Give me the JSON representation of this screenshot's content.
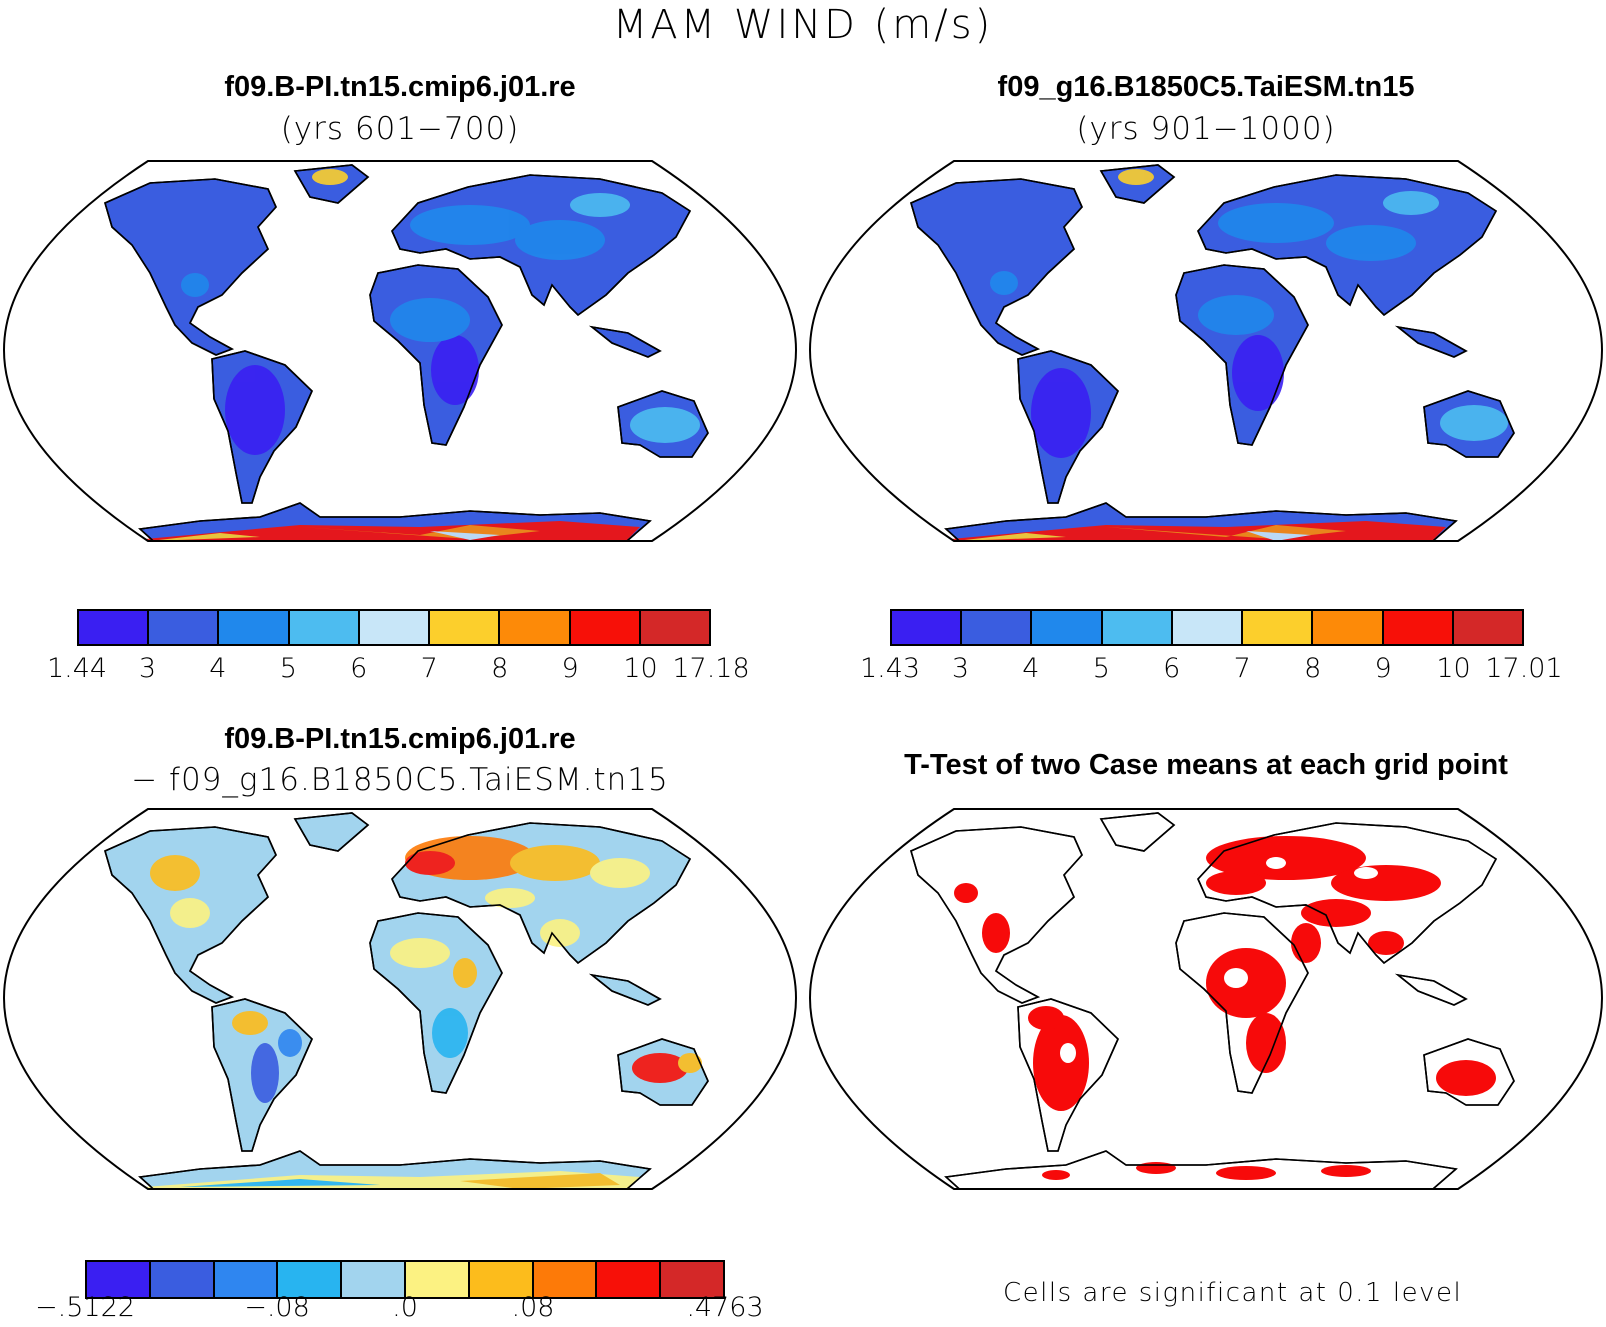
{
  "main_title": "MAM WIND (m/s)",
  "panels": {
    "top_left": {
      "title": "f09.B-PI.tn15.cmip6.j01.re",
      "subtitle": "(yrs 601−700)"
    },
    "top_right": {
      "title": "f09_g16.B1850C5.TaiESM.tn15",
      "subtitle": "(yrs 901−1000)"
    },
    "bottom_left": {
      "title": "f09.B-PI.tn15.cmip6.j01.re",
      "subtitle": "− f09_g16.B1850C5.TaiESM.tn15"
    },
    "bottom_right": {
      "title": "T-Test of two Case means at each grid point",
      "note": "Cells are significant at 0.1 level"
    }
  },
  "colorbars": {
    "case1": {
      "labels": [
        "1.44",
        "3",
        "4",
        "5",
        "6",
        "7",
        "8",
        "9",
        "10",
        "17.18"
      ],
      "colors": [
        "#3a1ff2",
        "#3a5de0",
        "#2088ec",
        "#4dbcf0",
        "#c8e6f8",
        "#fccf2c",
        "#fd8a08",
        "#f71008",
        "#d42828"
      ]
    },
    "case2": {
      "labels": [
        "1.43",
        "3",
        "4",
        "5",
        "6",
        "7",
        "8",
        "9",
        "10",
        "17.01"
      ],
      "colors": [
        "#3a1ff2",
        "#3a5de0",
        "#2088ec",
        "#4dbcf0",
        "#c8e6f8",
        "#fccf2c",
        "#fd8a08",
        "#f71008",
        "#d42828"
      ]
    },
    "diff": {
      "labels": [
        "−.5122",
        "−.08",
        ".0",
        ".08",
        ".4763"
      ],
      "label_index": [
        0,
        3,
        5,
        7,
        10
      ],
      "colors": [
        "#3a1ff2",
        "#3a5de0",
        "#2f86f0",
        "#28b4f0",
        "#a2d4ee",
        "#fcf282",
        "#fcbc1c",
        "#fd7a08",
        "#f71008",
        "#d42828"
      ]
    }
  },
  "map_colors": {
    "case_land": [
      "#3a5de0",
      "#2088ec",
      "#3a1ff2",
      "#4dbcf0"
    ],
    "case_antarctica": [
      "#f71008",
      "#fd8a08",
      "#fccf2c",
      "#c8e6f8"
    ],
    "diff_land": [
      "#a2d4ee",
      "#fcf282",
      "#fcbc1c",
      "#28b4f0"
    ],
    "ttest_red": "#f70a0a"
  }
}
